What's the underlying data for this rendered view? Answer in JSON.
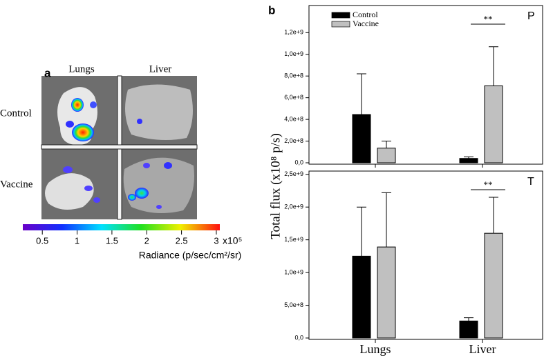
{
  "panel_a": {
    "panel_label": "a",
    "columns": [
      "Lungs",
      "Liver"
    ],
    "rows": [
      "Control",
      "Vaccine"
    ],
    "colorbar": {
      "lim": [
        0.22,
        3.05
      ],
      "ticks": [
        0.5,
        1,
        1.5,
        2,
        2.5,
        3
      ],
      "scale_label": "x10⁵",
      "label": "Radiance (p/sec/cm²/sr)"
    }
  },
  "panel_b": {
    "panel_label": "b",
    "ylabel": "Total flux (x10⁸ p/s)"
  },
  "chart_data": [
    {
      "type": "bar",
      "panel_label": "P",
      "significance": "**",
      "legend": "upper left",
      "ylim": [
        0,
        1450000000
      ],
      "yticks": [
        {
          "value": 0,
          "label": "0,0"
        },
        {
          "value": 200000000,
          "label": "2,0e+8"
        },
        {
          "value": 400000000,
          "label": "4,0e+8"
        },
        {
          "value": 600000000,
          "label": "6,0e+8"
        },
        {
          "value": 800000000,
          "label": "8,0e+8"
        },
        {
          "value": 1000000000,
          "label": "1,0e+9"
        },
        {
          "value": 1200000000,
          "label": "1,2e+9"
        }
      ],
      "series": [
        {
          "name": "Control",
          "color": "#000000",
          "values": [
            445000000,
            40000000
          ],
          "errors": [
            375000000,
            15000000
          ]
        },
        {
          "name": "Vaccine",
          "color": "#c0c0c0",
          "values": [
            135000000,
            710000000
          ],
          "errors": [
            65000000,
            360000000
          ]
        }
      ]
    },
    {
      "type": "bar",
      "panel_label": "T",
      "significance": "**",
      "categories": [
        "Lungs",
        "Liver"
      ],
      "ylim": [
        0,
        2550000000
      ],
      "yticks": [
        {
          "value": 0,
          "label": "0,0"
        },
        {
          "value": 500000000,
          "label": "5,0e+8"
        },
        {
          "value": 1000000000,
          "label": "1,0e+9"
        },
        {
          "value": 1500000000,
          "label": "1,5e+9"
        },
        {
          "value": 2000000000,
          "label": "2,0e+9"
        },
        {
          "value": 2500000000,
          "label": "2,5e+9"
        }
      ],
      "series": [
        {
          "color": "#000000",
          "values": [
            1250000000,
            260000000
          ],
          "errors": [
            750000000,
            50000000
          ]
        },
        {
          "color": "#c0c0c0",
          "values": [
            1390000000,
            1600000000
          ],
          "errors": [
            830000000,
            550000000
          ]
        }
      ]
    }
  ]
}
